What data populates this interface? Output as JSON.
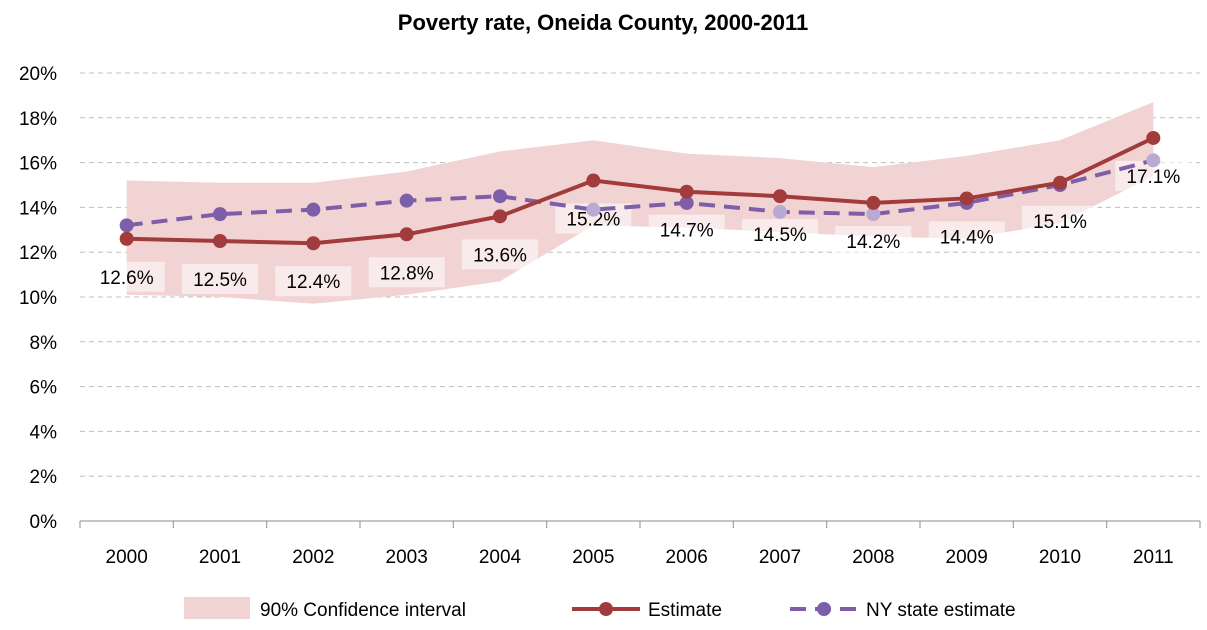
{
  "chart_data": {
    "type": "line",
    "title": "Poverty rate, Oneida County, 2000-2011",
    "xlabel": "",
    "ylabel": "",
    "categories": [
      "2000",
      "2001",
      "2002",
      "2003",
      "2004",
      "2005",
      "2006",
      "2007",
      "2008",
      "2009",
      "2010",
      "2011"
    ],
    "ylim": [
      0,
      20
    ],
    "y_ticks": [
      "0%",
      "2%",
      "4%",
      "6%",
      "8%",
      "10%",
      "12%",
      "14%",
      "16%",
      "18%",
      "20%"
    ],
    "grid": true,
    "legend_position": "bottom",
    "series": [
      {
        "name": "90% Confidence interval",
        "kind": "band",
        "color": "#f2d3d3",
        "lower": [
          10.1,
          10.0,
          9.7,
          10.1,
          10.7,
          13.2,
          13.1,
          12.9,
          12.7,
          12.6,
          13.3,
          15.4
        ],
        "upper": [
          15.2,
          15.1,
          15.1,
          15.6,
          16.5,
          17.0,
          16.4,
          16.2,
          15.8,
          16.3,
          17.0,
          18.7
        ]
      },
      {
        "name": "Estimate",
        "kind": "line",
        "color": "#a23b3b",
        "values": [
          12.6,
          12.5,
          12.4,
          12.8,
          13.6,
          15.2,
          14.7,
          14.5,
          14.2,
          14.4,
          15.1,
          17.1
        ],
        "labels": [
          "12.6%",
          "12.5%",
          "12.4%",
          "12.8%",
          "13.6%",
          "15.2%",
          "14.7%",
          "14.5%",
          "14.2%",
          "14.4%",
          "15.1%",
          "17.1%"
        ]
      },
      {
        "name": "NY state estimate",
        "kind": "dashed-line",
        "color": "#7d5ea8",
        "values": [
          13.2,
          13.7,
          13.9,
          14.3,
          14.5,
          13.9,
          14.2,
          13.8,
          13.7,
          14.2,
          15.0,
          16.1
        ]
      }
    ]
  }
}
